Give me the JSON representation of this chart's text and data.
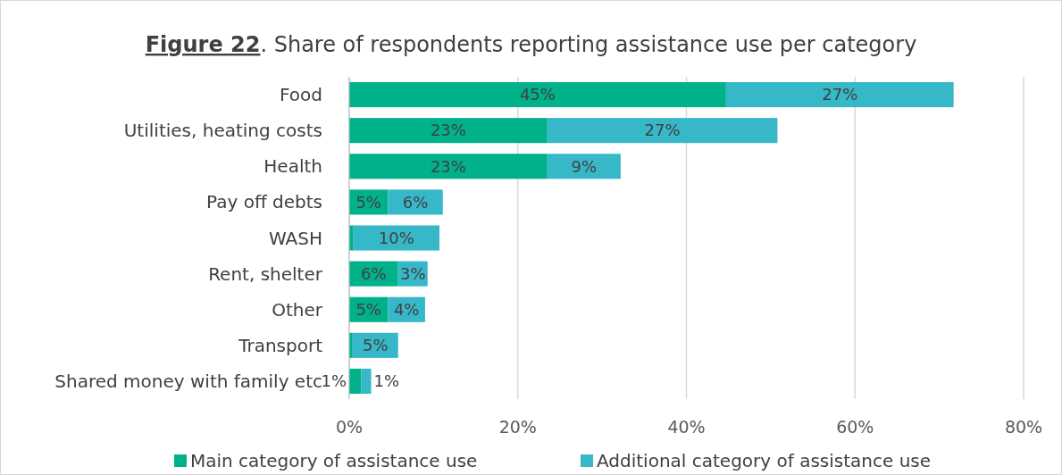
{
  "chart_data": {
    "type": "bar",
    "orientation": "horizontal",
    "stacked": true,
    "title": "Figure 22. Share of respondents reporting assistance use per category",
    "categories": [
      "Food",
      "Utilities, heating costs",
      "Health",
      "Pay off debts",
      "WASH",
      "Rent, shelter",
      "Other",
      "Transport",
      "Shared money with family etc"
    ],
    "series": [
      {
        "name": "Main category of assistance use",
        "color": "#00b18a",
        "values": [
          44.7,
          23.5,
          23.5,
          4.6,
          0.5,
          5.8,
          4.6,
          0.4,
          1.4
        ],
        "value_labels": [
          "45%",
          "23%",
          "23%",
          "5%",
          null,
          "6%",
          "5%",
          null,
          "1%"
        ]
      },
      {
        "name": "Additional category of assistance use",
        "color": "#36b8c9",
        "values": [
          27.0,
          27.3,
          8.7,
          6.5,
          10.2,
          3.5,
          4.4,
          5.4,
          1.2
        ],
        "value_labels": [
          "27%",
          "27%",
          "9%",
          "6%",
          "10%",
          "3%",
          "4%",
          "5%",
          "1%"
        ]
      }
    ],
    "xlim": [
      0,
      80
    ],
    "xticks": [
      {
        "value": 0,
        "label": "0%"
      },
      {
        "value": 20,
        "label": "20%"
      },
      {
        "value": 40,
        "label": "40%"
      },
      {
        "value": 60,
        "label": "60%"
      },
      {
        "value": 80,
        "label": "80%"
      }
    ],
    "grid": "x",
    "legend": "bottom"
  }
}
